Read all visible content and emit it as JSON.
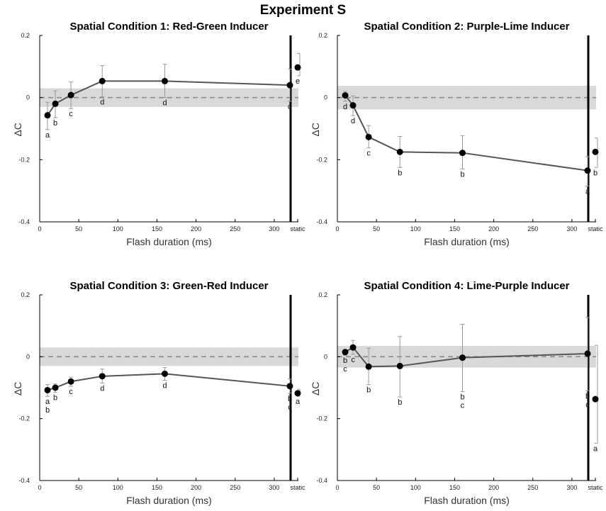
{
  "figure": {
    "title": "Experiment S"
  },
  "chart_data": [
    {
      "type": "line",
      "title": "Spatial Condition 1: Red-Green Inducer",
      "xlabel": "Flash duration (ms)",
      "ylabel": "ΔC",
      "xlim": [
        0,
        340
      ],
      "ylim": [
        -0.4,
        0.2
      ],
      "xticks": [
        "0",
        "50",
        "100",
        "150",
        "200",
        "250",
        "300",
        "static"
      ],
      "yticks": [
        "0.2",
        "0",
        "-0.2",
        "-0.4"
      ],
      "band": [
        -0.03,
        0.03
      ],
      "reference_line": 0,
      "series": [
        {
          "x": [
            10,
            20,
            40,
            80,
            160,
            320
          ],
          "y": [
            -0.057,
            -0.02,
            0.008,
            0.053,
            0.053,
            0.04
          ],
          "err_low": [
            -0.103,
            -0.065,
            -0.035,
            0.003,
            0.0,
            -0.012
          ],
          "err_high": [
            -0.015,
            0.022,
            0.05,
            0.103,
            0.107,
            0.092
          ],
          "labels": [
            "a",
            "b",
            "c",
            "d",
            "d",
            "d"
          ]
        }
      ],
      "static": {
        "y": 0.097,
        "err_low": 0.07,
        "err_high": 0.142,
        "label": "e"
      }
    },
    {
      "type": "line",
      "title": "Spatial Condition 2: Purple-Lime Inducer",
      "xlabel": "Flash duration (ms)",
      "ylabel": "ΔC",
      "xlim": [
        0,
        340
      ],
      "ylim": [
        -0.4,
        0.2
      ],
      "xticks": [
        "0",
        "50",
        "100",
        "150",
        "200",
        "250",
        "300",
        "static"
      ],
      "yticks": [
        "0.2",
        "0",
        "-0.2",
        "-0.4"
      ],
      "band": [
        -0.038,
        0.038
      ],
      "reference_line": 0,
      "series": [
        {
          "x": [
            10,
            20,
            40,
            80,
            160,
            320
          ],
          "y": [
            0.007,
            -0.025,
            -0.127,
            -0.175,
            -0.178,
            -0.235
          ],
          "err_low": [
            -0.012,
            -0.058,
            -0.162,
            -0.225,
            -0.23,
            -0.285
          ],
          "err_high": [
            0.02,
            0.005,
            -0.09,
            -0.125,
            -0.123,
            -0.19
          ],
          "labels": [
            "d",
            "d",
            "c",
            "b",
            "b",
            "a"
          ]
        }
      ],
      "static": {
        "y": -0.175,
        "err_low": -0.225,
        "err_high": -0.13,
        "label": "b"
      }
    },
    {
      "type": "line",
      "title": "Spatial Condition 3: Green-Red Inducer",
      "xlabel": "Flash duration (ms)",
      "ylabel": "ΔC",
      "xlim": [
        0,
        340
      ],
      "ylim": [
        -0.4,
        0.2
      ],
      "xticks": [
        "0",
        "50",
        "100",
        "150",
        "200",
        "250",
        "300",
        "static"
      ],
      "yticks": [
        "0.2",
        "0",
        "-0.2",
        "-0.4"
      ],
      "band": [
        -0.03,
        0.03
      ],
      "reference_line": 0,
      "series": [
        {
          "x": [
            10,
            20,
            40,
            80,
            160,
            320
          ],
          "y": [
            -0.108,
            -0.1,
            -0.08,
            -0.063,
            -0.055,
            -0.095
          ],
          "err_low": [
            -0.128,
            -0.115,
            -0.095,
            -0.085,
            -0.076,
            -0.118
          ],
          "err_high": [
            -0.09,
            -0.088,
            -0.066,
            -0.04,
            -0.035,
            -0.072
          ],
          "labels": [
            "a\nb",
            "b",
            "c",
            "d",
            "d",
            "b\nc"
          ]
        }
      ],
      "static": {
        "y": -0.118,
        "err_low": -0.128,
        "err_high": -0.105,
        "label": "a"
      }
    },
    {
      "type": "line",
      "title": "Spatial Condition 4: Lime-Purple Inducer",
      "xlabel": "Flash duration (ms)",
      "ylabel": "ΔC",
      "xlim": [
        0,
        340
      ],
      "ylim": [
        -0.4,
        0.2
      ],
      "xticks": [
        "0",
        "50",
        "100",
        "150",
        "200",
        "250",
        "300",
        "static"
      ],
      "yticks": [
        "0.2",
        "0",
        "-0.2",
        "-0.4"
      ],
      "band": [
        -0.035,
        0.035
      ],
      "reference_line": 0,
      "series": [
        {
          "x": [
            10,
            20,
            40,
            80,
            160,
            320
          ],
          "y": [
            0.015,
            0.03,
            -0.032,
            -0.03,
            -0.003,
            0.01
          ],
          "err_low": [
            0.005,
            0.008,
            -0.09,
            -0.13,
            -0.113,
            -0.11
          ],
          "err_high": [
            0.022,
            0.053,
            0.027,
            0.065,
            0.105,
            0.127
          ],
          "labels": [
            "b\nc",
            "c",
            "b",
            "b",
            "b\nc",
            "b\nc"
          ]
        }
      ],
      "static": {
        "y": -0.137,
        "err_low": -0.28,
        "err_high": 0.037,
        "label": "a"
      }
    }
  ]
}
